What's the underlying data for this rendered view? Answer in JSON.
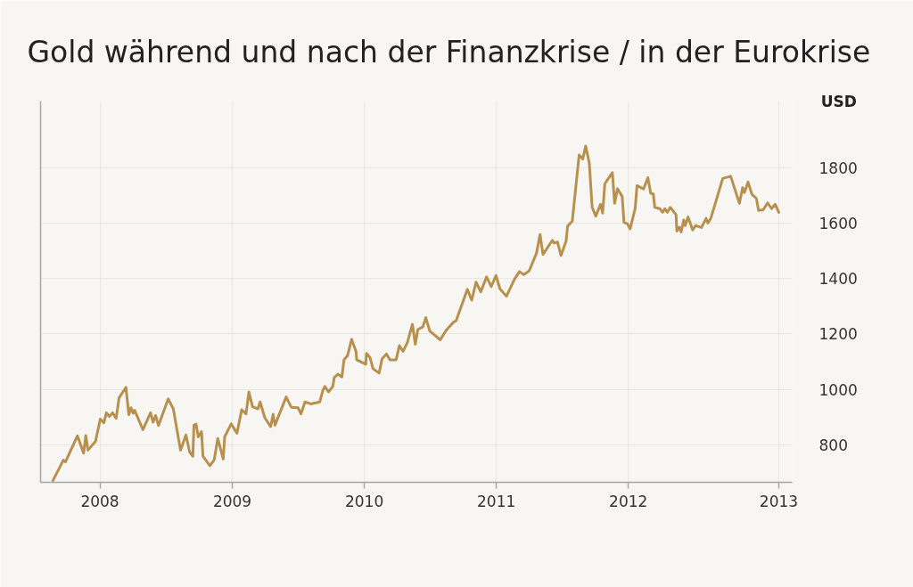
{
  "chart_data": {
    "type": "line",
    "title": "Gold während und nach der Finanzkrise / in der Eurokrise",
    "ylabel": "USD",
    "x": [
      "2007-08-24",
      "2007-09-22",
      "2007-09-28",
      "2007-10-31",
      "2007-11-17",
      "2007-11-23",
      "2007-11-29",
      "2007-12-20",
      "2008-01-02",
      "2008-01-12",
      "2008-01-19",
      "2008-01-27",
      "2008-02-05",
      "2008-02-15",
      "2008-02-23",
      "2008-03-13",
      "2008-03-21",
      "2008-03-27",
      "2008-04-02",
      "2008-04-06",
      "2008-04-29",
      "2008-05-20",
      "2008-05-27",
      "2008-06-03",
      "2008-06-11",
      "2008-07-08",
      "2008-07-22",
      "2008-08-11",
      "2008-08-26",
      "2008-09-05",
      "2008-09-14",
      "2008-09-17",
      "2008-09-23",
      "2008-09-29",
      "2008-10-08",
      "2008-10-12",
      "2008-10-31",
      "2008-11-12",
      "2008-11-22",
      "2008-12-07",
      "2008-12-11",
      "2008-12-29",
      "2009-01-14",
      "2009-01-27",
      "2009-02-08",
      "2009-02-16",
      "2009-02-26",
      "2009-03-13",
      "2009-03-19",
      "2009-04-01",
      "2009-04-17",
      "2009-04-24",
      "2009-04-29",
      "2009-05-30",
      "2009-06-13",
      "2009-07-02",
      "2009-07-10",
      "2009-07-21",
      "2009-08-06",
      "2009-08-31",
      "2009-09-08",
      "2009-09-14",
      "2009-09-24",
      "2009-10-06",
      "2009-10-10",
      "2009-10-20",
      "2009-10-31",
      "2009-11-06",
      "2009-11-16",
      "2009-11-27",
      "2009-12-09",
      "2009-12-11",
      "2010-01-05",
      "2010-01-07",
      "2010-01-17",
      "2010-01-25",
      "2010-02-11",
      "2010-02-19",
      "2010-03-03",
      "2010-03-13",
      "2010-03-30",
      "2010-04-08",
      "2010-04-18",
      "2010-04-30",
      "2010-05-14",
      "2010-05-22",
      "2010-05-29",
      "2010-06-12",
      "2010-06-20",
      "2010-07-01",
      "2010-07-30",
      "2010-08-15",
      "2010-09-04",
      "2010-09-12",
      "2010-10-13",
      "2010-10-25",
      "2010-11-06",
      "2010-11-19",
      "2010-12-05",
      "2010-12-18",
      "2010-12-31",
      "2011-01-11",
      "2011-01-29",
      "2011-02-20",
      "2011-03-06",
      "2011-03-18",
      "2011-04-02",
      "2011-04-22",
      "2011-05-02",
      "2011-05-10",
      "2011-06-05",
      "2011-06-10",
      "2011-06-19",
      "2011-06-29",
      "2011-07-13",
      "2011-07-17",
      "2011-07-30",
      "2011-08-18",
      "2011-08-28",
      "2011-09-05",
      "2011-09-15",
      "2011-09-23",
      "2011-10-03",
      "2011-10-16",
      "2011-10-22",
      "2011-10-28",
      "2011-11-18",
      "2011-11-24",
      "2011-12-02",
      "2011-12-15",
      "2011-12-20",
      "2011-12-29",
      "2012-01-06",
      "2012-01-20",
      "2012-01-25",
      "2012-02-12",
      "2012-02-24",
      "2012-03-03",
      "2012-03-10",
      "2012-03-14",
      "2012-03-28",
      "2012-04-05",
      "2012-04-11",
      "2012-04-18",
      "2012-04-26",
      "2012-05-12",
      "2012-05-14",
      "2012-05-21",
      "2012-05-26",
      "2012-06-02",
      "2012-06-06",
      "2012-06-14",
      "2012-06-27",
      "2012-07-05",
      "2012-07-21",
      "2012-08-03",
      "2012-08-08",
      "2012-08-16",
      "2012-09-18",
      "2012-10-10",
      "2012-11-03",
      "2012-11-12",
      "2012-11-17",
      "2012-11-27",
      "2012-12-08",
      "2012-12-20",
      "2012-12-26",
      "2013-01-08",
      "2013-01-20",
      "2013-01-31",
      "2013-02-10",
      "2013-02-20"
    ],
    "series": [
      {
        "color": "#b8904d",
        "values": [
          671,
          745,
          739,
          833,
          770,
          834,
          781,
          813,
          893,
          880,
          916,
          902,
          916,
          896,
          970,
          1008,
          909,
          934,
          914,
          925,
          855,
          916,
          882,
          906,
          870,
          966,
          930,
          781,
          836,
          775,
          759,
          871,
          875,
          829,
          848,
          759,
          725,
          746,
          823,
          749,
          829,
          876,
          842,
          927,
          912,
          991,
          938,
          930,
          955,
          898,
          866,
          911,
          871,
          973,
          936,
          934,
          912,
          955,
          948,
          955,
          995,
          1011,
          991,
          1011,
          1043,
          1055,
          1045,
          1107,
          1123,
          1181,
          1137,
          1107,
          1091,
          1130,
          1115,
          1075,
          1059,
          1110,
          1128,
          1107,
          1107,
          1158,
          1137,
          1169,
          1235,
          1163,
          1216,
          1226,
          1259,
          1211,
          1179,
          1213,
          1242,
          1248,
          1361,
          1322,
          1387,
          1352,
          1406,
          1371,
          1411,
          1363,
          1336,
          1397,
          1425,
          1414,
          1428,
          1491,
          1559,
          1487,
          1538,
          1528,
          1532,
          1483,
          1536,
          1589,
          1607,
          1846,
          1831,
          1878,
          1817,
          1657,
          1625,
          1668,
          1636,
          1742,
          1782,
          1671,
          1724,
          1696,
          1603,
          1598,
          1579,
          1653,
          1735,
          1723,
          1764,
          1707,
          1705,
          1657,
          1652,
          1639,
          1652,
          1639,
          1657,
          1630,
          1571,
          1585,
          1568,
          1611,
          1591,
          1622,
          1575,
          1591,
          1584,
          1617,
          1600,
          1617,
          1761,
          1769,
          1671,
          1728,
          1710,
          1748,
          1703,
          1689,
          1646,
          1648,
          1673,
          1652,
          1668,
          1639
        ]
      }
    ],
    "xlim": [
      "2007-07-21",
      "2013-03-29"
    ],
    "xticks": [
      "2008",
      "2009",
      "2010",
      "2011",
      "2012",
      {
        "value": "2013-02-20",
        "label": "2013"
      }
    ],
    "ylim": [
      665,
      2040
    ],
    "yticks": [
      800,
      1000,
      1200,
      1400,
      1600,
      1800
    ],
    "grid": true
  }
}
